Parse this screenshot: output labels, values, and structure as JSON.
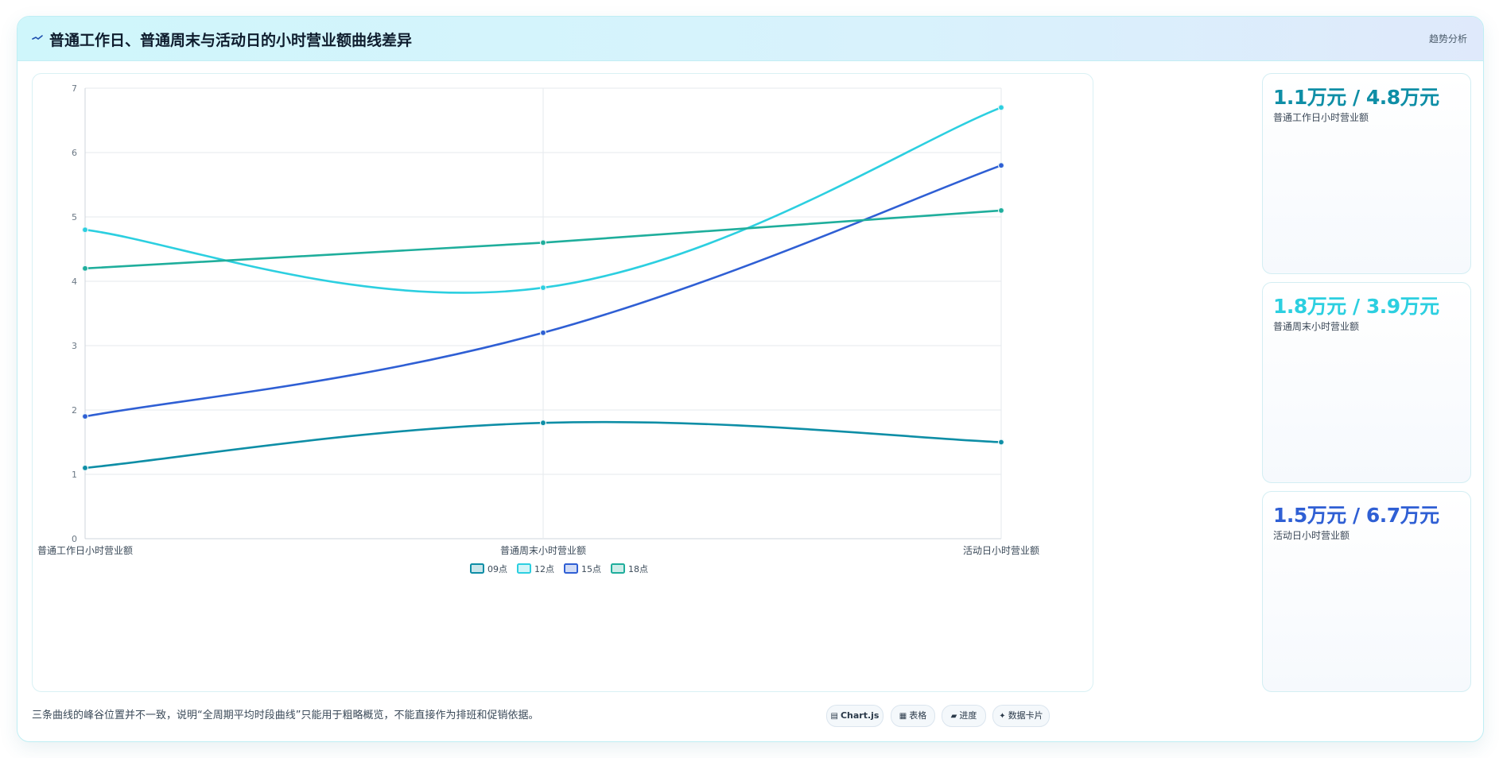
{
  "header": {
    "title": "普通工作日、普通周末与活动日的小时营业额曲线差异",
    "badge": "趋势分析",
    "icon": "trend-line-icon"
  },
  "chart_data": {
    "type": "line",
    "categories": [
      "普通工作日小时营业额",
      "普通周末小时营业额",
      "活动日小时营业额"
    ],
    "series": [
      {
        "name": "09点",
        "values": [
          1.1,
          1.8,
          1.5
        ],
        "color": "#0e8ea6"
      },
      {
        "name": "12点",
        "values": [
          4.8,
          3.9,
          6.7
        ],
        "color": "#2ccfe0"
      },
      {
        "name": "15点",
        "values": [
          1.9,
          3.2,
          5.8
        ],
        "color": "#2f5fd4"
      },
      {
        "name": "18点",
        "values": [
          4.2,
          4.6,
          5.1
        ],
        "color": "#1fae9c"
      }
    ],
    "ylim": [
      0,
      7
    ],
    "yticks": [
      "0",
      "1",
      "2",
      "3",
      "4",
      "5",
      "6",
      "7"
    ],
    "grid": true,
    "legend_position": "bottom",
    "smooth": true
  },
  "side_cards": [
    {
      "value": "1.1万元 / 4.8万元",
      "label": "普通工作日小时营业额",
      "color": "#0e8ea6"
    },
    {
      "value": "1.8万元 / 3.9万元",
      "label": "普通周末小时营业额",
      "color": "#2ccfe0"
    },
    {
      "value": "1.5万元 / 6.7万元",
      "label": "活动日小时营业额",
      "color": "#2f5fd4"
    }
  ],
  "footnote": "三条曲线的峰谷位置并不一致，说明“全周期平均时段曲线”只能用于粗略概览，不能直接作为排班和促销依据。",
  "tags": [
    {
      "icon": "chart-icon",
      "glyph": "▤",
      "label": "Chart.js"
    },
    {
      "icon": "table-icon",
      "glyph": "▦",
      "label": "表格"
    },
    {
      "icon": "progress-icon",
      "glyph": "▰",
      "label": "进度"
    },
    {
      "icon": "card-icon",
      "glyph": "✦",
      "label": "数据卡片"
    }
  ]
}
